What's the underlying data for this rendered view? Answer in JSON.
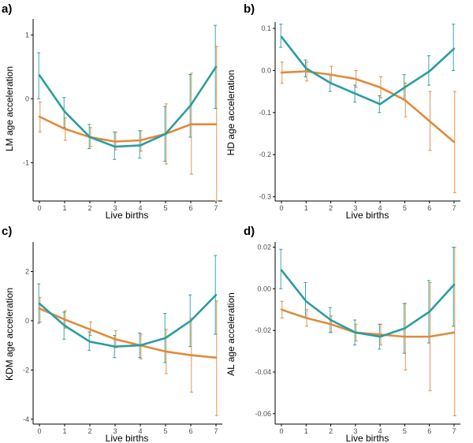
{
  "colors": {
    "teal": "#2a9d9f",
    "orange": "#e08a3c"
  },
  "chart_data": [
    {
      "panel": "a)",
      "type": "line",
      "xlabel": "Live births",
      "ylabel": "LM age acceleration",
      "x": [
        0,
        1,
        2,
        3,
        4,
        5,
        6,
        7
      ],
      "xticks": [
        "0",
        "1",
        "2",
        "3",
        "4",
        "5",
        "6",
        "7"
      ],
      "ylim": [
        -1.6,
        1.25
      ],
      "yticks": [
        -1,
        0,
        1
      ],
      "ytick_labels": [
        "-1",
        "0",
        "1"
      ],
      "series": [
        {
          "name": "teal",
          "color": "#2a9d9f",
          "values": [
            0.37,
            -0.2,
            -0.6,
            -0.75,
            -0.73,
            -0.55,
            -0.1,
            0.5
          ],
          "lower": [
            0.0,
            -0.45,
            -0.78,
            -0.95,
            -0.93,
            -0.98,
            -0.6,
            -0.15
          ],
          "upper": [
            0.72,
            0.02,
            -0.4,
            -0.52,
            -0.5,
            -0.12,
            0.38,
            1.15
          ]
        },
        {
          "name": "orange",
          "color": "#e08a3c",
          "values": [
            -0.28,
            -0.47,
            -0.6,
            -0.67,
            -0.65,
            -0.55,
            -0.4,
            -0.4
          ],
          "lower": [
            -0.52,
            -0.65,
            -0.75,
            -0.8,
            -0.82,
            -1.02,
            -1.18,
            -1.6
          ],
          "upper": [
            -0.05,
            -0.3,
            -0.45,
            -0.52,
            -0.5,
            -0.08,
            0.4,
            0.82
          ]
        }
      ]
    },
    {
      "panel": "b)",
      "type": "line",
      "xlabel": "Live births",
      "ylabel": "HD age acceleration",
      "x": [
        0,
        1,
        2,
        3,
        4,
        5,
        6,
        7
      ],
      "xticks": [
        "0",
        "1",
        "2",
        "3",
        "4",
        "5",
        "6",
        "7"
      ],
      "ylim": [
        -0.31,
        0.115
      ],
      "yticks": [
        0.1,
        0,
        -0.1,
        -0.2,
        -0.3
      ],
      "ytick_labels": [
        "0.1",
        "0.0",
        "-0.1",
        "-0.2",
        "-0.3"
      ],
      "series": [
        {
          "name": "teal",
          "color": "#2a9d9f",
          "values": [
            0.08,
            0.005,
            -0.03,
            -0.055,
            -0.08,
            -0.04,
            -0.002,
            0.052
          ],
          "lower": [
            0.055,
            -0.015,
            -0.05,
            -0.075,
            -0.1,
            -0.07,
            -0.035,
            0.0
          ],
          "upper": [
            0.11,
            0.025,
            -0.01,
            -0.035,
            -0.06,
            -0.01,
            0.035,
            0.11
          ]
        },
        {
          "name": "orange",
          "color": "#e08a3c",
          "values": [
            -0.005,
            -0.002,
            -0.01,
            -0.02,
            -0.04,
            -0.07,
            -0.12,
            -0.17
          ],
          "lower": [
            -0.03,
            -0.025,
            -0.03,
            -0.04,
            -0.065,
            -0.11,
            -0.19,
            -0.29
          ],
          "upper": [
            0.02,
            0.02,
            0.01,
            0.0,
            -0.015,
            -0.03,
            -0.05,
            -0.05
          ]
        }
      ]
    },
    {
      "panel": "c)",
      "type": "line",
      "xlabel": "Live births",
      "ylabel": "KDM age acceleration",
      "x": [
        0,
        1,
        2,
        3,
        4,
        5,
        6,
        7
      ],
      "xticks": [
        "0",
        "1",
        "2",
        "3",
        "4",
        "5",
        "6",
        "7"
      ],
      "ylim": [
        -4.2,
        3.2
      ],
      "yticks": [
        2,
        0,
        -2,
        -4
      ],
      "ytick_labels": [
        "2",
        "0",
        "-2",
        "-4"
      ],
      "series": [
        {
          "name": "teal",
          "color": "#2a9d9f",
          "values": [
            0.7,
            -0.2,
            -0.85,
            -1.05,
            -1.0,
            -0.7,
            0.0,
            1.05
          ],
          "lower": [
            -0.1,
            -0.75,
            -1.2,
            -1.5,
            -1.5,
            -1.7,
            -1.05,
            -0.55
          ],
          "upper": [
            1.5,
            0.35,
            -0.45,
            -0.6,
            -0.5,
            0.3,
            1.05,
            2.65
          ]
        },
        {
          "name": "orange",
          "color": "#e08a3c",
          "values": [
            0.5,
            0.05,
            -0.35,
            -0.75,
            -1.0,
            -1.25,
            -1.4,
            -1.5
          ],
          "lower": [
            -0.05,
            -0.3,
            -0.6,
            -1.1,
            -1.55,
            -2.15,
            -2.9,
            -3.85
          ],
          "upper": [
            0.95,
            0.4,
            -0.05,
            -0.4,
            -0.55,
            -0.35,
            0.1,
            0.8
          ]
        }
      ]
    },
    {
      "panel": "d)",
      "type": "line",
      "xlabel": "Live births",
      "ylabel": "AL age acceleration",
      "x": [
        0,
        1,
        2,
        3,
        4,
        5,
        6,
        7
      ],
      "xticks": [
        "0",
        "1",
        "2",
        "3",
        "4",
        "5",
        "6",
        "7"
      ],
      "ylim": [
        -0.065,
        0.0225
      ],
      "yticks": [
        0.02,
        0,
        -0.02,
        -0.04,
        -0.06
      ],
      "ytick_labels": [
        "0.02",
        "0.00",
        "-0.02",
        "-0.04",
        "-0.06"
      ],
      "series": [
        {
          "name": "teal",
          "color": "#2a9d9f",
          "values": [
            0.009,
            -0.006,
            -0.015,
            -0.021,
            -0.023,
            -0.019,
            -0.011,
            0.002
          ],
          "lower": [
            0.0,
            -0.014,
            -0.021,
            -0.027,
            -0.029,
            -0.031,
            -0.026,
            -0.018
          ],
          "upper": [
            0.019,
            0.003,
            -0.009,
            -0.015,
            -0.017,
            -0.007,
            0.004,
            0.02
          ]
        },
        {
          "name": "orange",
          "color": "#e08a3c",
          "values": [
            -0.01,
            -0.014,
            -0.017,
            -0.021,
            -0.022,
            -0.023,
            -0.023,
            -0.021
          ],
          "lower": [
            -0.014,
            -0.018,
            -0.021,
            -0.025,
            -0.027,
            -0.039,
            -0.049,
            -0.061
          ],
          "upper": [
            -0.006,
            -0.01,
            -0.013,
            -0.017,
            -0.017,
            -0.007,
            0.003,
            0.02
          ]
        }
      ]
    }
  ]
}
